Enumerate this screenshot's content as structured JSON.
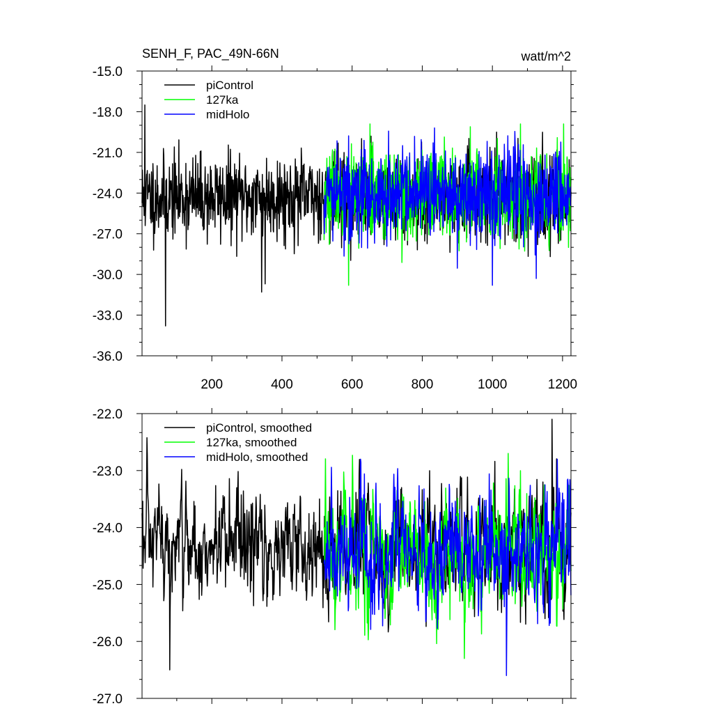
{
  "header": {
    "title": "SENH_F, PAC_49N-66N",
    "units": "watt/m^2"
  },
  "chart_data": [
    {
      "type": "line",
      "title": "SENH_F, PAC_49N-66N",
      "units": "watt/m^2",
      "xlim": [
        1,
        1224
      ],
      "ylim": [
        -36.0,
        -15.0
      ],
      "x_ticks": [
        200,
        400,
        600,
        800,
        1000,
        1200
      ],
      "x_tick_labels": [
        "200",
        "400",
        "600",
        "800",
        "1000",
        "1200"
      ],
      "y_ticks": [
        -36.0,
        -33.0,
        -30.0,
        -27.0,
        -24.0,
        -21.0,
        -18.0,
        -15.0
      ],
      "y_tick_labels": [
        "-36.0",
        "-33.0",
        "-30.0",
        "-27.0",
        "-24.0",
        "-21.0",
        "-18.0",
        "-15.0"
      ],
      "legend_position": "top-left",
      "series": [
        {
          "name": "piControl",
          "color": "#000000",
          "x_start": 1,
          "x_end": 1224,
          "mean": -24.3,
          "spread": 1.55,
          "min": -33.8,
          "max": -17.5,
          "anchors": [
            [
              9,
              -17.5
            ],
            [
              68,
              -33.8
            ],
            [
              342,
              -31.3
            ],
            [
              352,
              -30.7
            ]
          ]
        },
        {
          "name": "127ka",
          "color": "#00ff00",
          "x_start": 520,
          "x_end": 1224,
          "mean": -24.1,
          "spread": 1.65,
          "min": -30.8,
          "max": -18.9,
          "anchors": [
            [
              590,
              -30.8
            ],
            [
              1080,
              -18.9
            ]
          ]
        },
        {
          "name": "midHolo",
          "color": "#0000ff",
          "x_start": 520,
          "x_end": 1224,
          "mean": -24.1,
          "spread": 1.7,
          "min": -30.8,
          "max": -19.2,
          "anchors": [
            [
              1000,
              -30.8
            ],
            [
              1125,
              -30.3
            ]
          ]
        }
      ]
    },
    {
      "type": "line",
      "xlim": [
        1,
        1224
      ],
      "ylim": [
        -27.0,
        -22.0
      ],
      "y_ticks": [
        -27.0,
        -26.0,
        -25.0,
        -24.0,
        -23.0,
        -22.0
      ],
      "y_tick_labels": [
        "-27.0",
        "-26.0",
        "-25.0",
        "-24.0",
        "-23.0",
        "-22.0"
      ],
      "legend_position": "top-left",
      "series": [
        {
          "name": "piControl, smoothed",
          "color": "#000000",
          "x_start": 1,
          "x_end": 1224,
          "mean": -24.35,
          "spread": 0.5,
          "min": -26.5,
          "max": -22.1,
          "anchors": [
            [
              80,
              -26.5
            ],
            [
              1170,
              -22.1
            ],
            [
              1150,
              -25.6
            ]
          ]
        },
        {
          "name": "127ka, smoothed",
          "color": "#00ff00",
          "x_start": 520,
          "x_end": 1224,
          "mean": -24.45,
          "spread": 0.55,
          "min": -26.3,
          "max": -22.7,
          "anchors": [
            [
              920,
              -26.3
            ],
            [
              1045,
              -22.7
            ]
          ]
        },
        {
          "name": "midHolo, smoothed",
          "color": "#0000ff",
          "x_start": 520,
          "x_end": 1224,
          "mean": -24.4,
          "spread": 0.55,
          "min": -26.6,
          "max": -22.8,
          "anchors": [
            [
              1040,
              -26.6
            ],
            [
              1185,
              -22.8
            ]
          ]
        }
      ]
    }
  ]
}
